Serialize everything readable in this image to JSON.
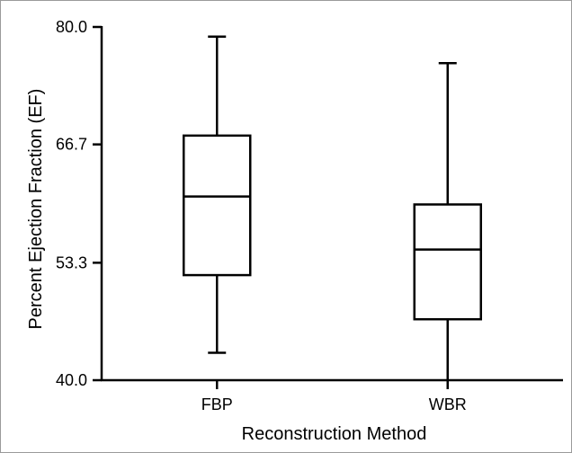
{
  "chart_data": {
    "type": "box",
    "xlabel": "Reconstruction Method",
    "ylabel": "Percent Ejection Fraction (EF)",
    "ylim": [
      40.0,
      80.0
    ],
    "yticks": [
      "40.0",
      "53.3",
      "66.7",
      "80.0"
    ],
    "ytick_values": [
      40.0,
      53.3,
      66.7,
      80.0
    ],
    "categories": [
      "FBP",
      "WBR"
    ],
    "boxes": [
      {
        "label": "FBP",
        "min": 43.1,
        "q1": 51.9,
        "median": 60.8,
        "q3": 67.7,
        "max": 78.9
      },
      {
        "label": "WBR",
        "min": 40.0,
        "q1": 46.9,
        "median": 54.8,
        "q3": 59.9,
        "max": 75.9
      }
    ],
    "grid": false,
    "legend": "none"
  }
}
